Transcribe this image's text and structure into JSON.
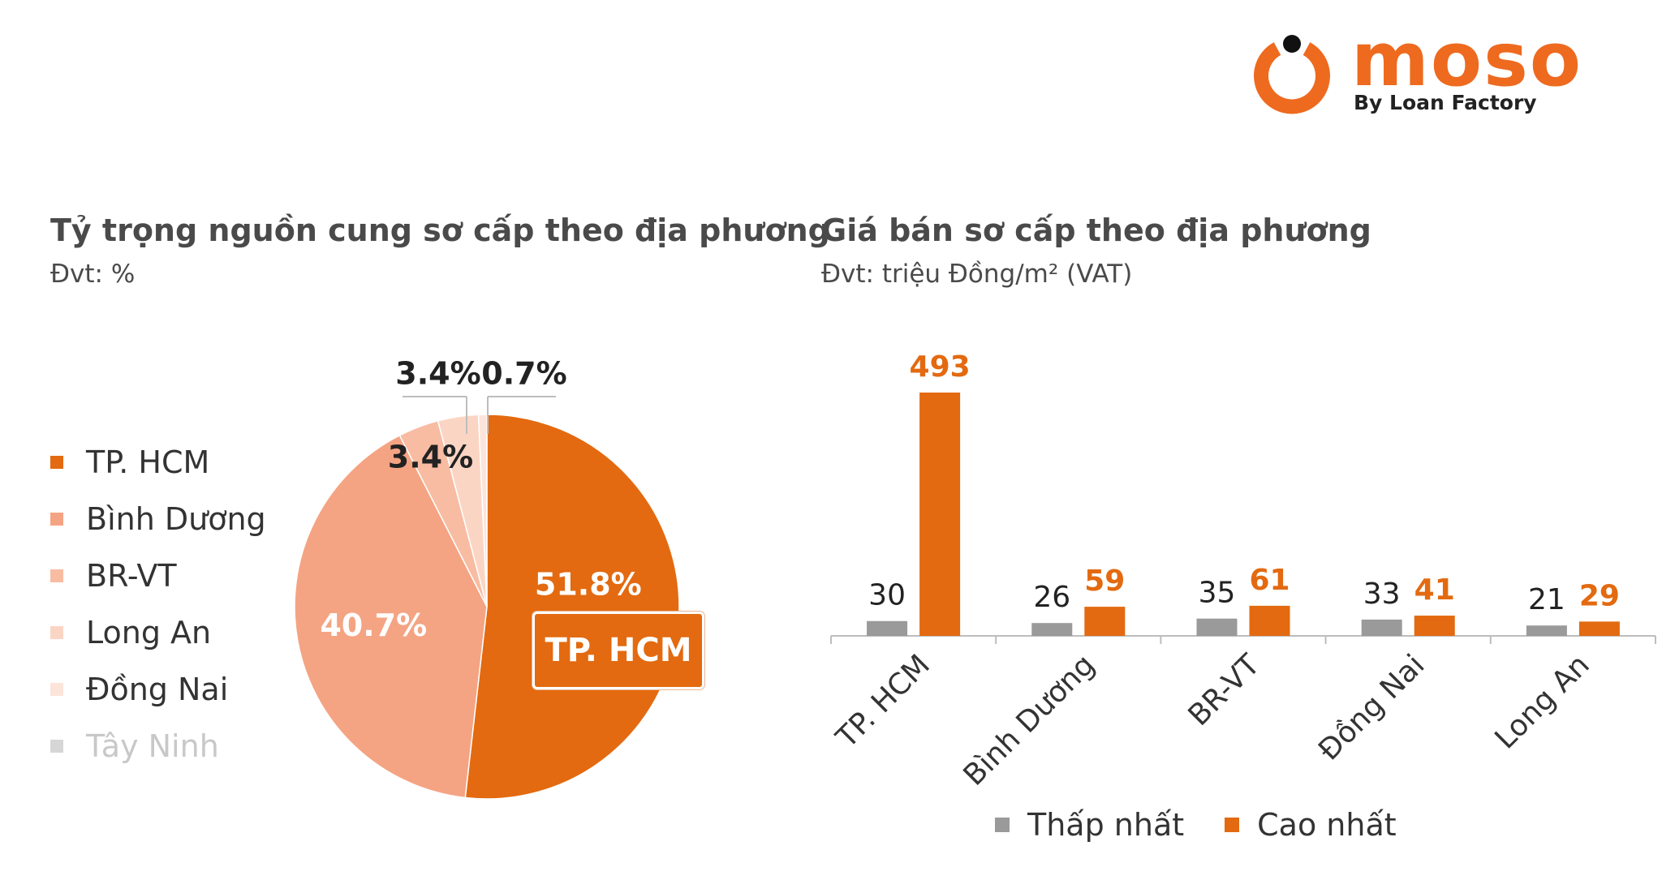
{
  "brand": {
    "name": "moso",
    "tagline": "By Loan Factory",
    "color": "#ee6a1f"
  },
  "pie": {
    "title": "Tỷ trọng nguồn cung sơ cấp theo địa phương",
    "unit": "Đvt: %",
    "callout": "TP. HCM"
  },
  "bars": {
    "title": "Giá bán sơ cấp theo địa phương",
    "unit": "Đvt: triệu Đồng/m² (VAT)"
  },
  "chart_data": [
    {
      "type": "pie",
      "title": "Tỷ trọng nguồn cung sơ cấp theo địa phương",
      "categories": [
        "TP. HCM",
        "Bình Dương",
        "BR-VT",
        "Long An",
        "Đồng Nai",
        "Tây Ninh"
      ],
      "values": [
        51.8,
        40.7,
        3.4,
        3.4,
        0.7,
        0.0
      ],
      "labels": [
        "51.8%",
        "40.7%",
        "3.4%",
        "3.4%",
        "0.7%",
        ""
      ],
      "colors": [
        "#e36a10",
        "#f4a483",
        "#f8bca3",
        "#fbd5c4",
        "#fce4da",
        "#d6d6d6"
      ],
      "legend": "left"
    },
    {
      "type": "bar",
      "title": "Giá bán sơ cấp theo địa phương",
      "categories": [
        "TP. HCM",
        "Bình Dương",
        "BR-VT",
        "Đồng Nai",
        "Long An"
      ],
      "series": [
        {
          "name": "Thấp nhất",
          "values": [
            30,
            26,
            35,
            33,
            21
          ],
          "color": "#9a9a9a"
        },
        {
          "name": "Cao nhất",
          "values": [
            493,
            59,
            61,
            41,
            29
          ],
          "color": "#e36a10"
        }
      ],
      "ylim": [
        0,
        493
      ],
      "legend": "bottom"
    }
  ]
}
